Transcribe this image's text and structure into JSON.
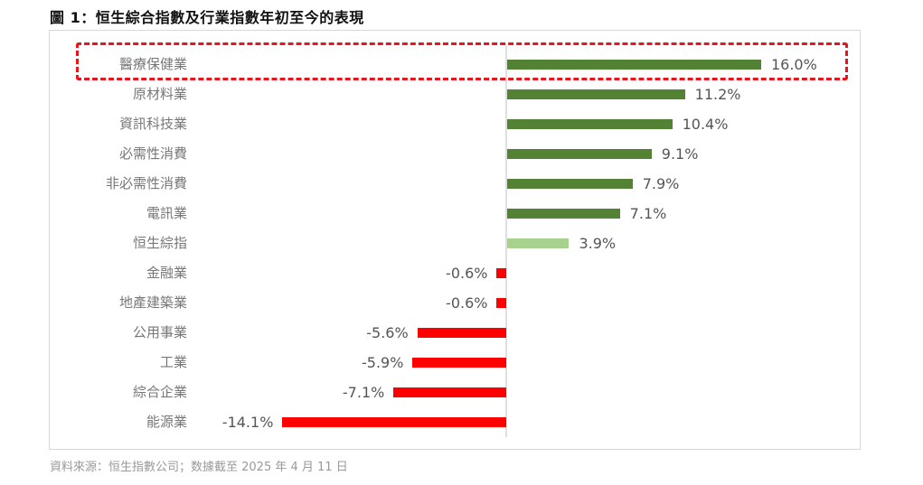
{
  "title": "圖 1：恒生綜合指數及行業指數年初至今的表現",
  "source": "資料來源：恒生指數公司；数據截至 2025 年 4 月 11 日",
  "colors": {
    "positive": "#548235",
    "index": "#a9d18e",
    "negative": "#ff0000",
    "highlight_box": "#e8141e"
  },
  "highlight": "醫療保健業",
  "rows": [
    {
      "label": "醫療保健業",
      "value": 16.0,
      "text": "16.0%",
      "kind": "positive"
    },
    {
      "label": "原材料業",
      "value": 11.2,
      "text": "11.2%",
      "kind": "positive"
    },
    {
      "label": "資訊科技業",
      "value": 10.4,
      "text": "10.4%",
      "kind": "positive"
    },
    {
      "label": "必需性消費",
      "value": 9.1,
      "text": "9.1%",
      "kind": "positive"
    },
    {
      "label": "非必需性消費",
      "value": 7.9,
      "text": "7.9%",
      "kind": "positive"
    },
    {
      "label": "電訊業",
      "value": 7.1,
      "text": "7.1%",
      "kind": "positive"
    },
    {
      "label": "恒生綜指",
      "value": 3.9,
      "text": "3.9%",
      "kind": "index"
    },
    {
      "label": "金融業",
      "value": -0.6,
      "text": "-0.6%",
      "kind": "negative"
    },
    {
      "label": "地產建築業",
      "value": -0.6,
      "text": "-0.6%",
      "kind": "negative"
    },
    {
      "label": "公用事業",
      "value": -5.6,
      "text": "-5.6%",
      "kind": "negative"
    },
    {
      "label": "工業",
      "value": -5.9,
      "text": "-5.9%",
      "kind": "negative"
    },
    {
      "label": "綜合企業",
      "value": -7.1,
      "text": "-7.1%",
      "kind": "negative"
    },
    {
      "label": "能源業",
      "value": -14.1,
      "text": "-14.1%",
      "kind": "negative"
    }
  ],
  "chart_data": {
    "type": "bar",
    "orientation": "horizontal",
    "title": "圖 1：恒生綜合指數及行業指數年初至今的表現",
    "categories": [
      "醫療保健業",
      "原材料業",
      "資訊科技業",
      "必需性消費",
      "非必需性消費",
      "電訊業",
      "恒生綜指",
      "金融業",
      "地產建築業",
      "公用事業",
      "工業",
      "綜合企業",
      "能源業"
    ],
    "values": [
      16.0,
      11.2,
      10.4,
      9.1,
      7.9,
      7.1,
      3.9,
      -0.6,
      -0.6,
      -5.6,
      -5.9,
      -7.1,
      -14.1
    ],
    "unit": "%",
    "xlabel": "",
    "ylabel": "",
    "data_labels": true,
    "grid": false,
    "legend": null,
    "annotations": [
      "Dashed red box highlighting 醫療保健業 (16.0%)"
    ],
    "source": "資料來源：恒生指數公司；数據截至 2025 年 4 月 11 日"
  }
}
